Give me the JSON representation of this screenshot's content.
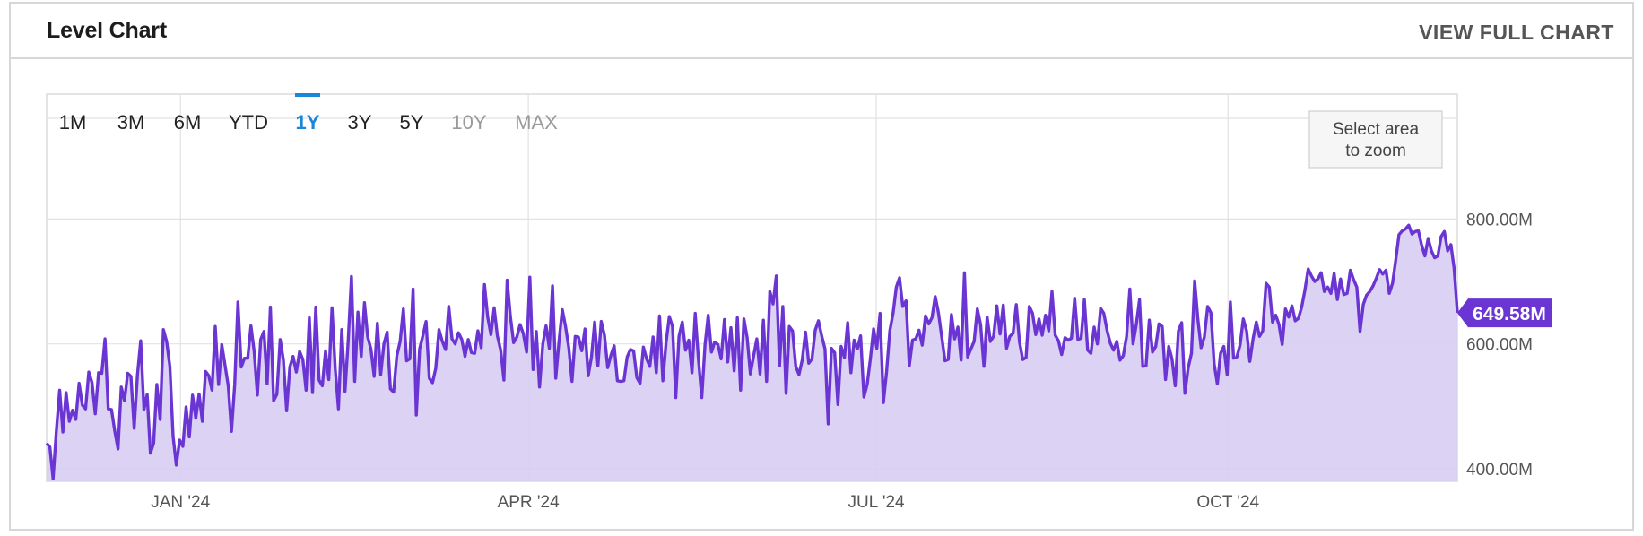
{
  "header": {
    "title": "Level Chart",
    "view_full_label": "VIEW FULL CHART"
  },
  "range_buttons": [
    {
      "label": "1M",
      "state": "normal"
    },
    {
      "label": "3M",
      "state": "normal"
    },
    {
      "label": "6M",
      "state": "normal"
    },
    {
      "label": "YTD",
      "state": "normal"
    },
    {
      "label": "1Y",
      "state": "active"
    },
    {
      "label": "3Y",
      "state": "normal"
    },
    {
      "label": "5Y",
      "state": "normal"
    },
    {
      "label": "10Y",
      "state": "disabled"
    },
    {
      "label": "MAX",
      "state": "disabled"
    }
  ],
  "zoom_hint": [
    "Select area",
    "to zoom"
  ],
  "colors": {
    "line": "#6a35d3",
    "area": "#d8cdf2",
    "active": "#1a86d8",
    "tag": "#6a35d3"
  },
  "chart_data": {
    "type": "area",
    "x_start": "2023-11-27",
    "x_end": "2024-11-30",
    "x_ticks": [
      {
        "label": "JAN '24",
        "date": "2024-01-01"
      },
      {
        "label": "APR '24",
        "date": "2024-04-01"
      },
      {
        "label": "JUL '24",
        "date": "2024-07-01"
      },
      {
        "label": "OCT '24",
        "date": "2024-10-01"
      }
    ],
    "y_ticks": [
      {
        "label": "400.00M",
        "value": 400
      },
      {
        "label": "600.00M",
        "value": 600
      },
      {
        "label": "800.00M",
        "value": 800
      }
    ],
    "ylim": [
      380,
      1000
    ],
    "grid": true,
    "last_value_label": "649.58M",
    "last_value": 649.58,
    "series": [
      {
        "values": [
          441,
          435,
          384,
          460,
          526,
          459,
          522,
          476,
          494,
          479,
          537,
          502,
          496,
          555,
          538,
          488,
          554,
          553,
          608,
          496,
          495,
          461,
          432,
          531,
          509,
          553,
          548,
          465,
          551,
          605,
          495,
          519,
          425,
          441,
          535,
          479,
          623,
          604,
          564,
          452,
          406,
          446,
          436,
          499,
          451,
          518,
          481,
          520,
          476,
          556,
          549,
          526,
          628,
          535,
          599,
          566,
          533,
          460,
          535,
          667,
          563,
          577,
          577,
          629,
          588,
          518,
          607,
          620,
          536,
          659,
          509,
          519,
          607,
          574,
          493,
          563,
          580,
          555,
          588,
          575,
          526,
          642,
          522,
          659,
          542,
          533,
          589,
          543,
          658,
          560,
          496,
          623,
          524,
          606,
          708,
          540,
          651,
          580,
          666,
          611,
          592,
          548,
          633,
          551,
          600,
          619,
          528,
          523,
          581,
          604,
          656,
          573,
          576,
          688,
          486,
          592,
          613,
          636,
          545,
          538,
          561,
          623,
          604,
          591,
          660,
          608,
          600,
          618,
          607,
          580,
          607,
          586,
          585,
          621,
          594,
          695,
          643,
          615,
          658,
          613,
          590,
          542,
          702,
          644,
          602,
          611,
          631,
          616,
          587,
          707,
          559,
          620,
          531,
          600,
          629,
          593,
          693,
          545,
          604,
          655,
          628,
          594,
          540,
          612,
          611,
          589,
          624,
          549,
          579,
          635,
          565,
          636,
          614,
          562,
          582,
          597,
          541,
          540,
          541,
          579,
          591,
          589,
          546,
          537,
          595,
          576,
          564,
          611,
          554,
          645,
          541,
          602,
          644,
          628,
          514,
          612,
          635,
          590,
          606,
          554,
          649,
          575,
          514,
          598,
          646,
          587,
          603,
          599,
          576,
          639,
          571,
          626,
          557,
          642,
          526,
          640,
          610,
          552,
          581,
          608,
          552,
          638,
          540,
          684,
          664,
          709,
          565,
          660,
          521,
          628,
          621,
          564,
          551,
          574,
          619,
          569,
          576,
          622,
          637,
          613,
          592,
          472,
          593,
          586,
          503,
          596,
          578,
          634,
          554,
          606,
          592,
          613,
          515,
          535,
          576,
          624,
          593,
          649,
          506,
          556,
          621,
          649,
          691,
          706,
          660,
          669,
          565,
          606,
          608,
          622,
          598,
          645,
          632,
          642,
          676,
          650,
          612,
          573,
          575,
          647,
          608,
          627,
          574,
          714,
          579,
          592,
          604,
          656,
          631,
          564,
          643,
          604,
          612,
          661,
          616,
          662,
          593,
          612,
          617,
          663,
          603,
          575,
          578,
          660,
          649,
          615,
          640,
          614,
          646,
          621,
          684,
          614,
          605,
          583,
          610,
          606,
          609,
          673,
          607,
          609,
          671,
          590,
          585,
          627,
          600,
          657,
          649,
          621,
          601,
          590,
          604,
          574,
          581,
          612,
          688,
          600,
          631,
          671,
          564,
          565,
          638,
          587,
          596,
          632,
          628,
          543,
          596,
          576,
          533,
          621,
          634,
          521,
          562,
          585,
          701,
          639,
          594,
          611,
          660,
          650,
          568,
          536,
          585,
          596,
          551,
          667,
          577,
          579,
          598,
          640,
          621,
          572,
          608,
          635,
          612,
          621,
          697,
          691,
          635,
          646,
          631,
          599,
          656,
          643,
          661,
          637,
          641,
          659,
          686,
          720,
          709,
          700,
          704,
          714,
          684,
          691,
          681,
          713,
          671,
          704,
          679,
          681,
          718,
          703,
          691,
          620,
          663,
          678,
          684,
          693,
          705,
          719,
          712,
          718,
          681,
          697,
          734,
          775,
          781,
          784,
          790,
          776,
          780,
          781,
          758,
          741,
          769,
          749,
          738,
          741,
          772,
          780,
          749,
          759,
          721,
          650
        ]
      }
    ]
  }
}
